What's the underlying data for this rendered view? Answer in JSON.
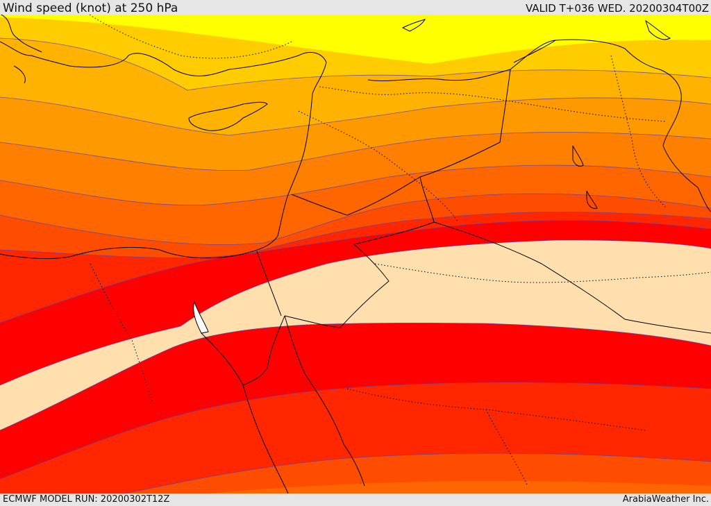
{
  "header": {
    "title": "Wind speed (knot) at 250 hPa",
    "valid": "VALID T+036 WED. 20200304T00Z"
  },
  "footer": {
    "model_run": "ECMWF MODEL RUN: 20200302T12Z",
    "credit": "ArabiaWeather Inc."
  },
  "map": {
    "field": "wind speed at 250 hPa",
    "bands": [
      {
        "name": "band-1",
        "color": "#ffff00"
      },
      {
        "name": "band-2",
        "color": "#ffcc00"
      },
      {
        "name": "band-3",
        "color": "#ffb300"
      },
      {
        "name": "band-4",
        "color": "#ff9900"
      },
      {
        "name": "band-5",
        "color": "#ff7f00"
      },
      {
        "name": "band-6",
        "color": "#ff6600"
      },
      {
        "name": "band-7",
        "color": "#ff4d00"
      },
      {
        "name": "band-8",
        "color": "#ff2600"
      },
      {
        "name": "band-9",
        "color": "#ff0000"
      },
      {
        "name": "jet-core",
        "color": "#ffdfae"
      }
    ],
    "contour_color": "#5a3fb0",
    "coast_color": "#000000"
  }
}
